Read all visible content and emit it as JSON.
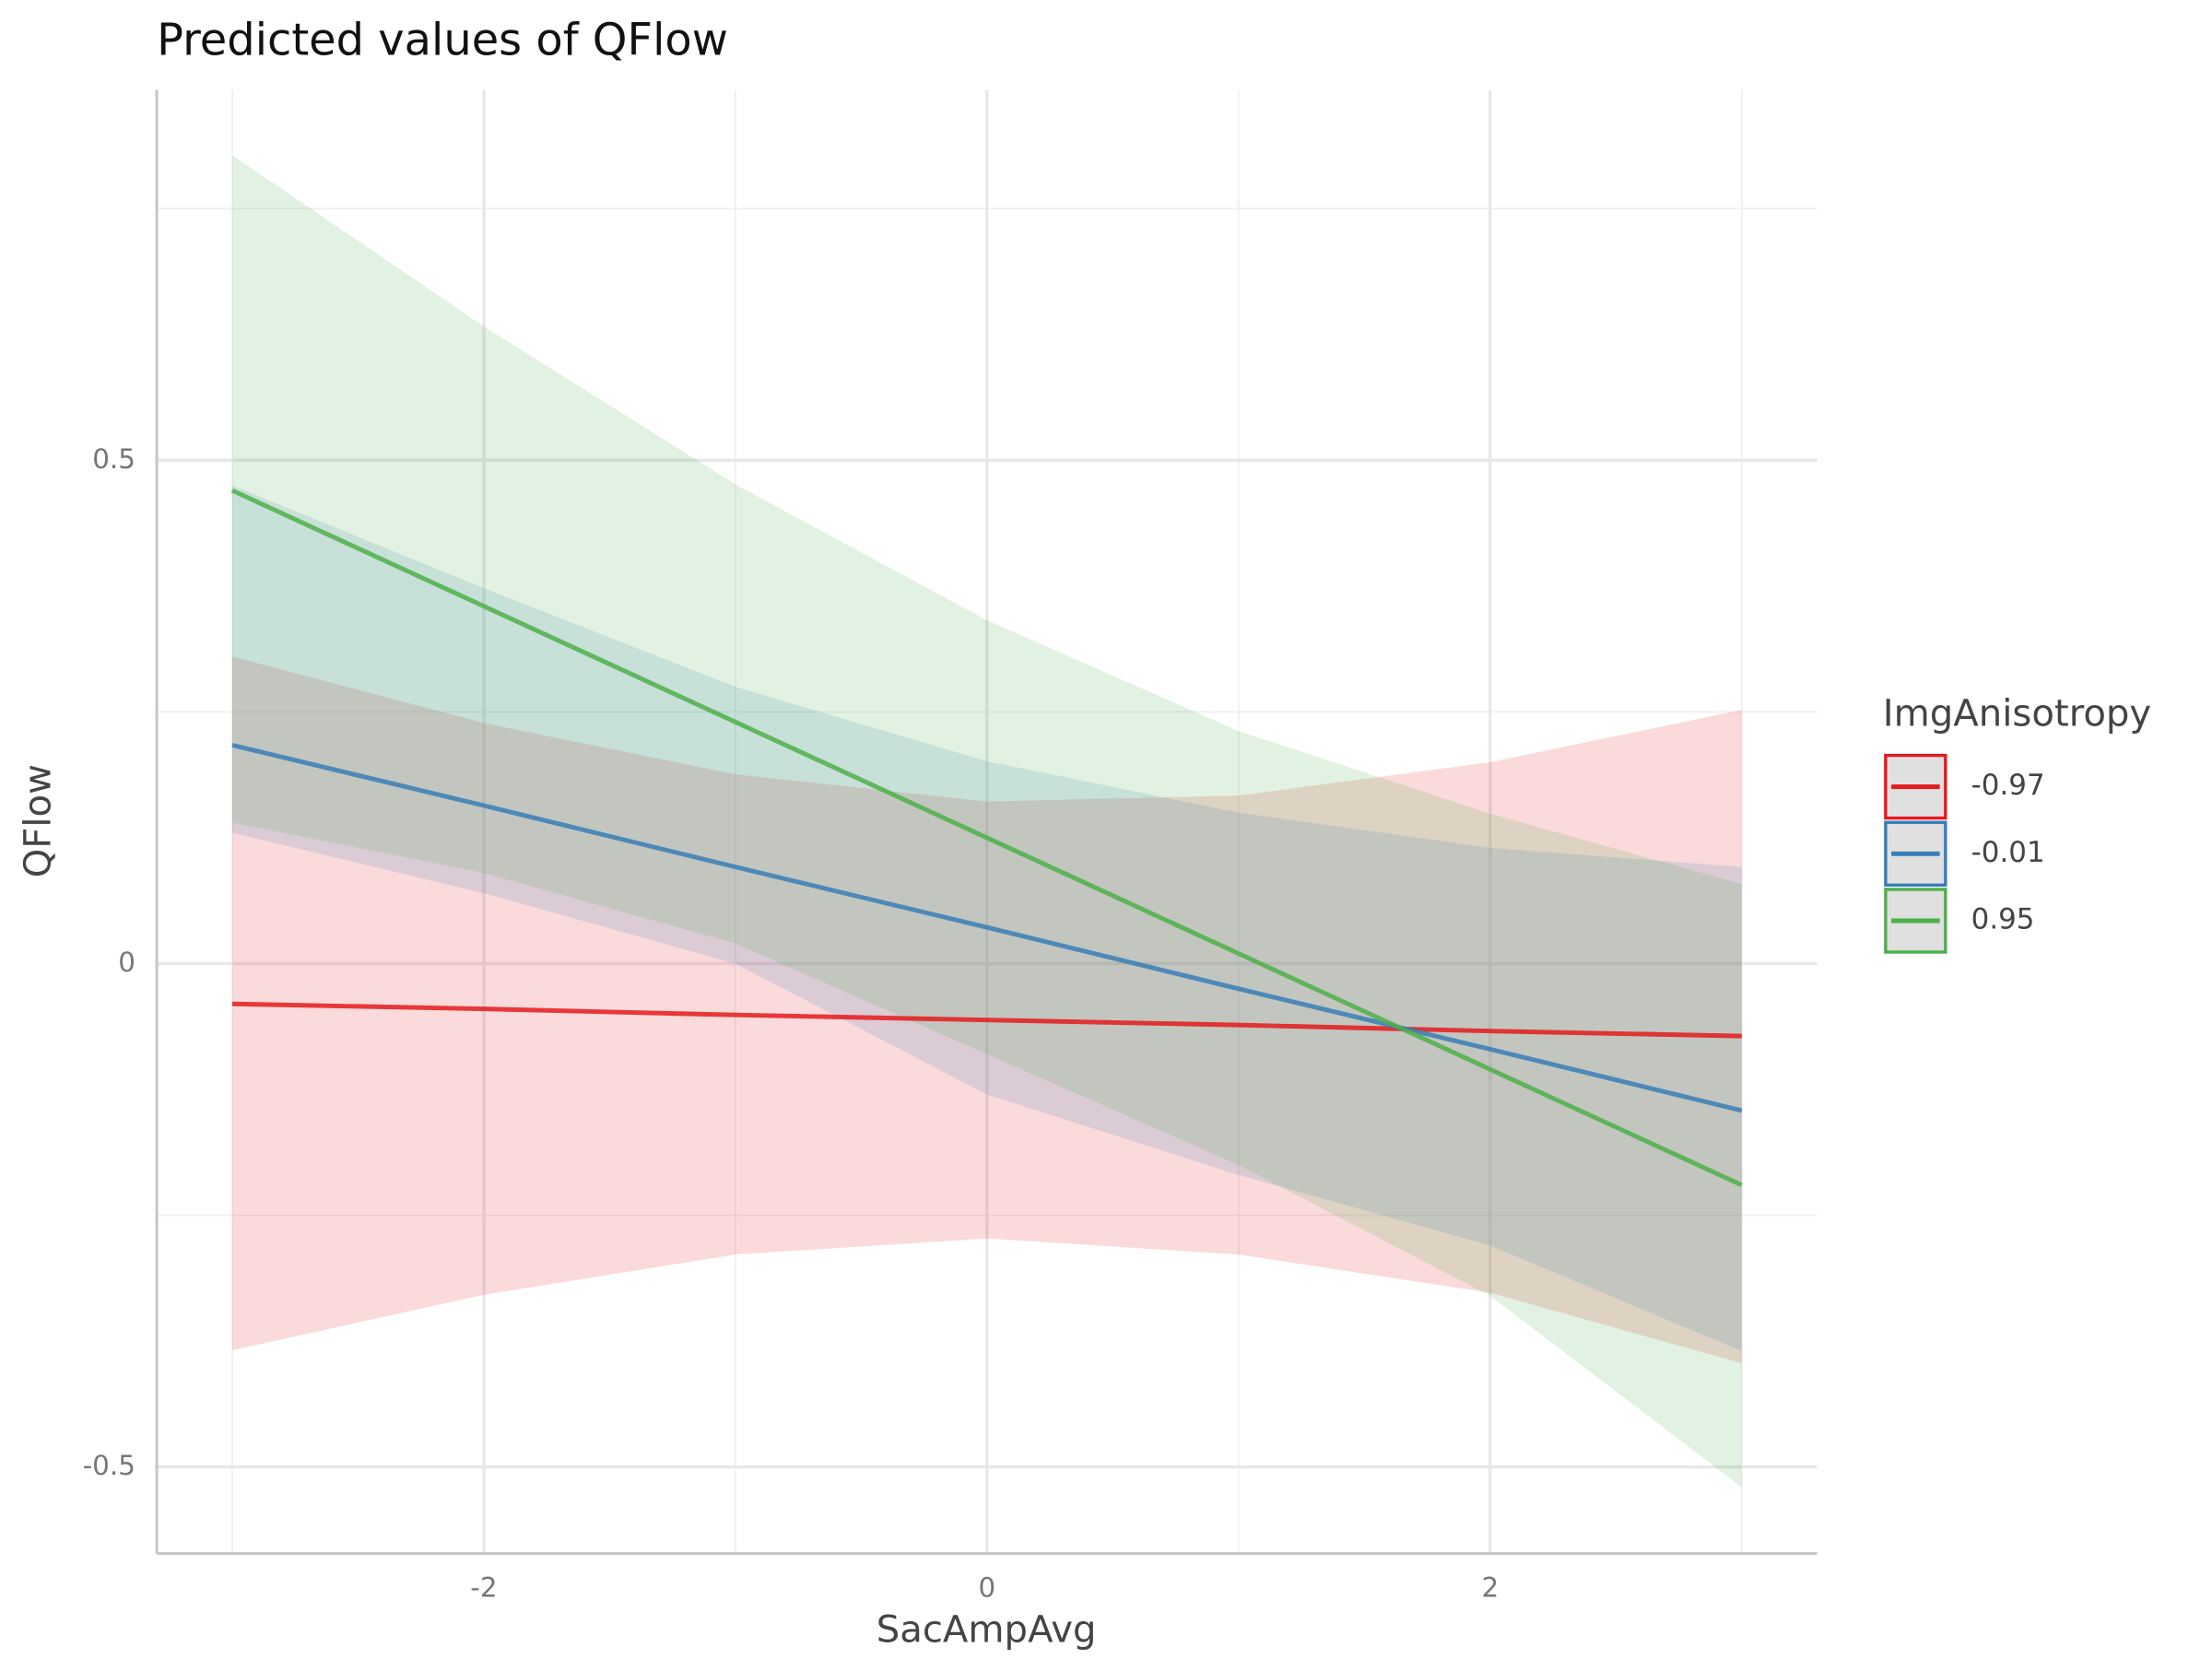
{
  "chart_data": {
    "type": "line",
    "title": "Predicted values of QFlow",
    "x_label": "SacAmpAvg",
    "y_label": "QFlow",
    "legend_title": "ImgAnisotropy",
    "legend_position": "right",
    "grid": true,
    "x": [
      -3,
      -2,
      -1,
      0,
      1,
      2,
      3
    ],
    "series": [
      {
        "name": "-0.97",
        "color": "#e41a1c",
        "values": [
          -0.04,
          -0.045,
          -0.051,
          -0.056,
          -0.061,
          -0.067,
          -0.072
        ],
        "upper": [
          0.305,
          0.239,
          0.188,
          0.161,
          0.167,
          0.2,
          0.252
        ],
        "lower": [
          -0.384,
          -0.329,
          -0.289,
          -0.273,
          -0.289,
          -0.327,
          -0.397
        ]
      },
      {
        "name": "-0.01",
        "color": "#377eb8",
        "values": [
          0.217,
          0.157,
          0.096,
          0.036,
          -0.025,
          -0.085,
          -0.146
        ],
        "upper": [
          0.475,
          0.373,
          0.275,
          0.201,
          0.15,
          0.115,
          0.096
        ],
        "lower": [
          0.13,
          0.07,
          0.0,
          -0.13,
          -0.21,
          -0.28,
          -0.385
        ]
      },
      {
        "name": "0.95",
        "color": "#4daf4a",
        "values": [
          0.47,
          0.355,
          0.24,
          0.125,
          0.01,
          -0.105,
          -0.22
        ],
        "upper": [
          0.803,
          0.633,
          0.476,
          0.341,
          0.231,
          0.149,
          0.079
        ],
        "lower": [
          0.14,
          0.09,
          0.02,
          -0.09,
          -0.2,
          -0.33,
          -0.52
        ]
      }
    ],
    "xlim": [
      -3.3,
      3.3
    ],
    "ylim": [
      -0.586,
      0.868
    ],
    "xticks": [
      -2,
      0,
      2
    ],
    "yticks": [
      -0.5,
      0,
      0.5
    ],
    "x_minor_grid": [
      -3,
      -1,
      1,
      3
    ],
    "y_minor_grid": [
      -0.25,
      0.25,
      0.75
    ]
  }
}
